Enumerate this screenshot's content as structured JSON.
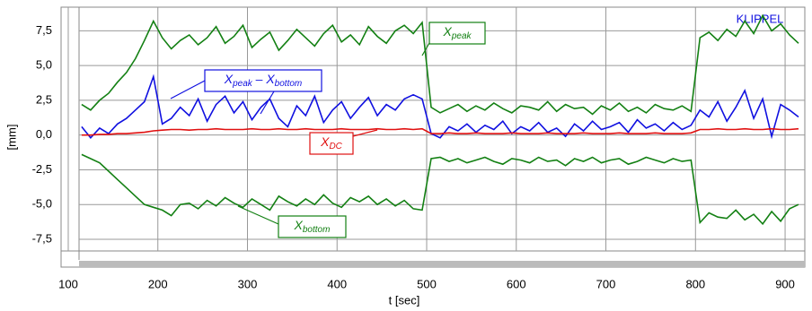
{
  "chart_data": {
    "type": "line",
    "xlabel": "t [sec]",
    "ylabel": "[mm]",
    "brand": "KLIPPEL",
    "x": [
      115,
      125,
      135,
      145,
      155,
      165,
      175,
      185,
      195,
      205,
      215,
      225,
      235,
      245,
      255,
      265,
      275,
      285,
      295,
      305,
      315,
      325,
      335,
      345,
      355,
      365,
      375,
      385,
      395,
      405,
      415,
      425,
      435,
      445,
      455,
      465,
      475,
      485,
      495,
      505,
      515,
      525,
      535,
      545,
      555,
      565,
      575,
      585,
      595,
      605,
      615,
      625,
      635,
      645,
      655,
      665,
      675,
      685,
      695,
      705,
      715,
      725,
      735,
      745,
      755,
      765,
      775,
      785,
      795,
      805,
      815,
      825,
      835,
      845,
      855,
      865,
      875,
      885,
      895,
      905,
      915
    ],
    "series": [
      {
        "color": "#138013",
        "values": [
          2.2,
          1.8,
          2.5,
          3.0,
          3.8,
          4.5,
          5.5,
          6.8,
          8.2,
          7.0,
          6.2,
          6.8,
          7.2,
          6.5,
          7.0,
          7.8,
          6.6,
          7.1,
          7.9,
          6.3,
          6.9,
          7.4,
          6.1,
          6.8,
          7.6,
          7.0,
          6.4,
          7.3,
          7.9,
          6.7,
          7.2,
          6.5,
          7.8,
          7.1,
          6.6,
          7.5,
          7.9,
          7.3,
          8.1,
          2.0,
          1.6,
          1.9,
          2.2,
          1.7,
          2.1,
          1.8,
          2.3,
          1.9,
          1.6,
          2.1,
          2.0,
          1.8,
          2.4,
          1.7,
          2.2,
          1.9,
          2.0,
          1.5,
          2.1,
          1.8,
          2.3,
          1.7,
          2.0,
          1.6,
          2.2,
          1.9,
          1.8,
          2.1,
          1.7,
          7.0,
          7.4,
          6.8,
          7.6,
          7.1,
          8.2,
          7.3,
          8.6,
          7.5,
          8.0,
          7.2,
          6.6
        ]
      },
      {
        "color": "#138013",
        "values": [
          -1.4,
          -1.7,
          -2.0,
          -2.6,
          -3.2,
          -3.8,
          -4.4,
          -5.0,
          -5.2,
          -5.4,
          -5.8,
          -5.0,
          -4.9,
          -5.3,
          -4.7,
          -5.1,
          -4.5,
          -4.9,
          -5.2,
          -4.6,
          -5.0,
          -5.4,
          -4.4,
          -4.8,
          -5.1,
          -4.6,
          -5.0,
          -4.3,
          -4.9,
          -5.2,
          -4.5,
          -4.8,
          -4.4,
          -5.0,
          -4.6,
          -5.1,
          -4.7,
          -5.3,
          -5.4,
          -1.7,
          -1.6,
          -1.9,
          -1.7,
          -2.0,
          -1.8,
          -1.6,
          -1.9,
          -2.1,
          -1.7,
          -1.8,
          -2.0,
          -1.6,
          -1.9,
          -1.8,
          -2.2,
          -1.7,
          -1.9,
          -1.6,
          -2.0,
          -1.8,
          -1.7,
          -2.1,
          -1.9,
          -1.6,
          -1.8,
          -2.0,
          -1.7,
          -1.9,
          -1.8,
          -6.3,
          -5.6,
          -5.9,
          -6.0,
          -5.4,
          -6.1,
          -5.7,
          -6.4,
          -5.5,
          -6.2,
          -5.3,
          -5.0
        ]
      },
      {
        "color": "#1010e0",
        "values": [
          0.6,
          -0.2,
          0.5,
          0.1,
          0.8,
          1.2,
          1.8,
          2.4,
          4.2,
          0.8,
          1.2,
          2.0,
          1.4,
          2.6,
          1.0,
          2.2,
          2.8,
          1.6,
          2.4,
          1.1,
          2.0,
          2.6,
          1.2,
          0.6,
          2.1,
          1.4,
          2.8,
          0.9,
          1.8,
          2.4,
          1.2,
          2.0,
          2.7,
          1.4,
          2.2,
          1.8,
          2.6,
          2.9,
          2.6,
          0.1,
          -0.2,
          0.6,
          0.3,
          0.8,
          0.2,
          0.7,
          0.4,
          1.0,
          0.1,
          0.6,
          0.3,
          0.9,
          0.2,
          0.5,
          -0.1,
          0.8,
          0.3,
          1.0,
          0.4,
          0.6,
          0.9,
          0.2,
          1.1,
          0.5,
          0.8,
          0.3,
          0.9,
          0.4,
          0.7,
          1.8,
          1.3,
          2.4,
          1.0,
          2.0,
          3.2,
          1.2,
          2.6,
          -0.1,
          2.2,
          1.8,
          1.3
        ]
      },
      {
        "color": "#e01010",
        "values": [
          0.0,
          0.0,
          0.05,
          0.05,
          0.1,
          0.1,
          0.15,
          0.2,
          0.3,
          0.35,
          0.4,
          0.4,
          0.35,
          0.4,
          0.4,
          0.45,
          0.4,
          0.4,
          0.4,
          0.45,
          0.4,
          0.4,
          0.45,
          0.4,
          0.4,
          0.45,
          0.4,
          0.4,
          0.4,
          0.45,
          0.4,
          0.4,
          0.4,
          0.45,
          0.4,
          0.4,
          0.45,
          0.4,
          0.45,
          0.1,
          0.1,
          0.15,
          0.1,
          0.1,
          0.15,
          0.1,
          0.1,
          0.1,
          0.15,
          0.1,
          0.1,
          0.1,
          0.15,
          0.1,
          0.1,
          0.1,
          0.15,
          0.1,
          0.1,
          0.1,
          0.15,
          0.1,
          0.1,
          0.1,
          0.15,
          0.1,
          0.1,
          0.1,
          0.15,
          0.4,
          0.4,
          0.45,
          0.4,
          0.4,
          0.45,
          0.4,
          0.4,
          0.45,
          0.4,
          0.4,
          0.45
        ]
      }
    ],
    "annotations": [
      {
        "color": "#138013",
        "parts": [
          {
            "text": "X"
          },
          {
            "sub": "peak"
          }
        ]
      },
      {
        "color": "#1010e0",
        "parts": [
          {
            "text": "X"
          },
          {
            "sub": "peak"
          },
          {
            "text": " – X"
          },
          {
            "sub": "bottom"
          }
        ]
      },
      {
        "color": "#e01010",
        "parts": [
          {
            "text": "X"
          },
          {
            "sub": "DC"
          }
        ]
      },
      {
        "color": "#138013",
        "parts": [
          {
            "text": "X"
          },
          {
            "sub": "bottom"
          }
        ]
      }
    ],
    "xlim": [
      92,
      922
    ],
    "ylim": [
      -9.5,
      9.2
    ],
    "xticks": [
      100,
      200,
      300,
      400,
      500,
      600,
      700,
      800,
      900
    ],
    "yticks": [
      {
        "value": -7.5,
        "label": "-7,5"
      },
      {
        "value": -5,
        "label": "-5,0"
      },
      {
        "value": -2.5,
        "label": "-2,5"
      },
      {
        "value": 0,
        "label": "0,0"
      },
      {
        "value": 2.5,
        "label": "2,5"
      },
      {
        "value": 5,
        "label": "5,0"
      },
      {
        "value": 7.5,
        "label": "7,5"
      }
    ],
    "grid": true
  }
}
